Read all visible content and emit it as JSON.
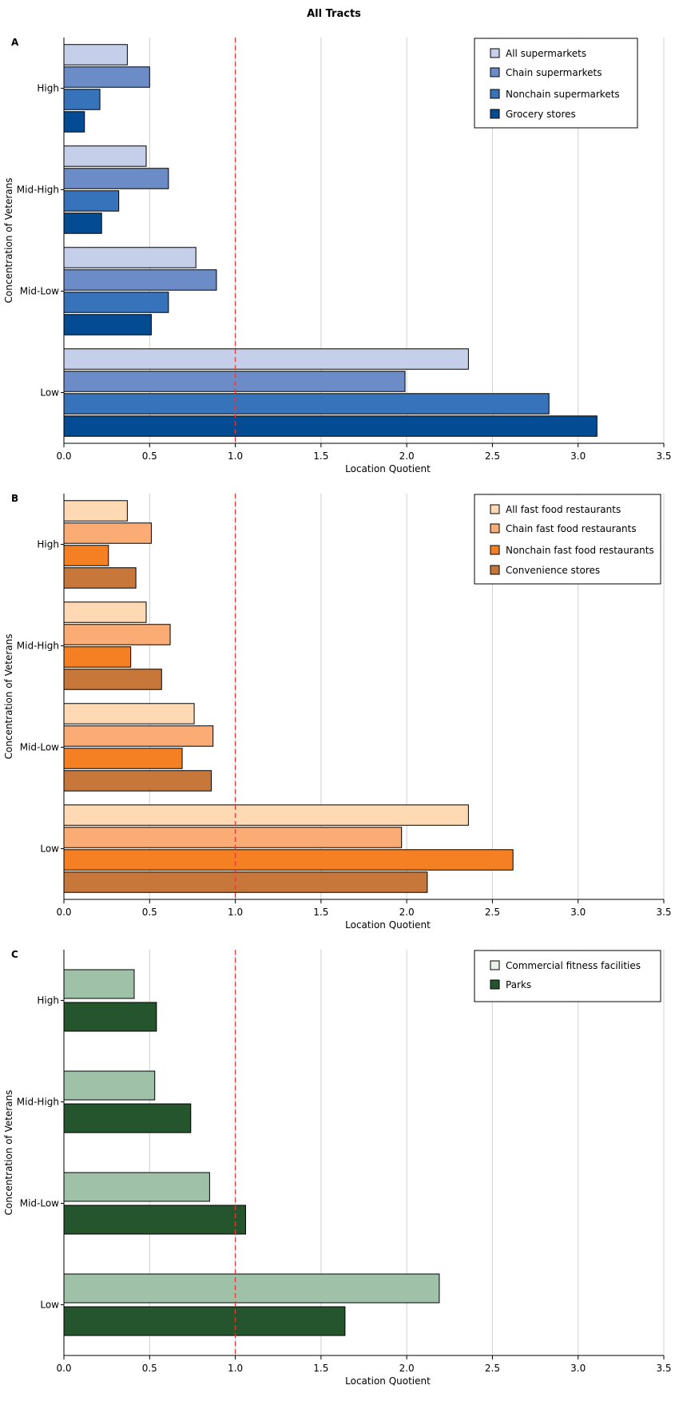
{
  "figure_title": "All Tracts",
  "chart_data": [
    {
      "panel": "A",
      "type": "bar",
      "orientation": "horizontal",
      "xlabel": "Location Quotient",
      "ylabel": "Concentration of Veterans",
      "xlim": [
        0,
        3.5
      ],
      "xticks": [
        "0.0",
        "0.5",
        "1.0",
        "1.5",
        "2.0",
        "2.5",
        "3.0",
        "3.5"
      ],
      "categories": [
        "High",
        "Mid-High",
        "Mid-Low",
        "Low"
      ],
      "reference_line": 1.0,
      "legend_position": "top-right",
      "grid": true,
      "series": [
        {
          "name": "All supermarkets",
          "color": "#c6cfe9",
          "values": [
            0.37,
            0.48,
            0.77,
            2.36
          ]
        },
        {
          "name": "Chain supermarkets",
          "color": "#6c8cc8",
          "values": [
            0.5,
            0.61,
            0.89,
            1.99
          ]
        },
        {
          "name": "Nonchain supermarkets",
          "color": "#3773bb",
          "values": [
            0.21,
            0.32,
            0.61,
            2.83
          ]
        },
        {
          "name": "Grocery stores",
          "color": "#034c93",
          "values": [
            0.12,
            0.22,
            0.51,
            3.11
          ]
        }
      ]
    },
    {
      "panel": "B",
      "type": "bar",
      "orientation": "horizontal",
      "xlabel": "Location Quotient",
      "ylabel": "Concentration of Veterans",
      "xlim": [
        0,
        3.5
      ],
      "xticks": [
        "0.0",
        "0.5",
        "1.0",
        "1.5",
        "2.0",
        "2.5",
        "3.0",
        "3.5"
      ],
      "categories": [
        "High",
        "Mid-High",
        "Mid-Low",
        "Low"
      ],
      "reference_line": 1.0,
      "legend_position": "top-right",
      "grid": true,
      "series": [
        {
          "name": "All fast food restaurants",
          "color": "#fed9b4",
          "values": [
            0.37,
            0.48,
            0.76,
            2.36
          ]
        },
        {
          "name": "Chain fast food restaurants",
          "color": "#fbab74",
          "values": [
            0.51,
            0.62,
            0.87,
            1.97
          ]
        },
        {
          "name": "Nonchain fast food restaurants",
          "color": "#f58023",
          "values": [
            0.26,
            0.39,
            0.69,
            2.62
          ]
        },
        {
          "name": "Convenience stores",
          "color": "#c7773a",
          "values": [
            0.42,
            0.57,
            0.86,
            2.12
          ]
        }
      ]
    },
    {
      "panel": "C",
      "type": "bar",
      "orientation": "horizontal",
      "xlabel": "Location Quotient",
      "ylabel": "Concentration of Veterans",
      "xlim": [
        0,
        3.5
      ],
      "xticks": [
        "0.0",
        "0.5",
        "1.0",
        "1.5",
        "2.0",
        "2.5",
        "3.0",
        "3.5"
      ],
      "categories": [
        "High",
        "Mid-High",
        "Mid-Low",
        "Low"
      ],
      "reference_line": 1.0,
      "legend_position": "top-right",
      "grid": true,
      "series": [
        {
          "name": "Commercial fitness facilities",
          "color": "#9fc1a7",
          "legend_color": "#e8f1ea",
          "values": [
            0.41,
            0.53,
            0.85,
            2.19
          ]
        },
        {
          "name": "Parks",
          "color": "#25552c",
          "values": [
            0.54,
            0.74,
            1.06,
            1.64
          ]
        }
      ]
    }
  ]
}
